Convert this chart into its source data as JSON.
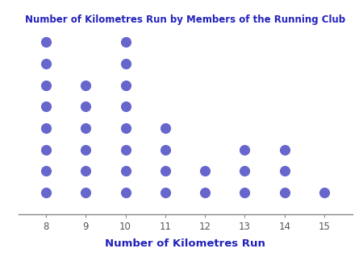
{
  "title": "Number of Kilometres Run by Members of the Running Club",
  "xlabel": "Number of Kilometres Run",
  "dot_counts": {
    "8": 8,
    "9": 6,
    "10": 8,
    "11": 4,
    "12": 2,
    "13": 3,
    "14": 3,
    "15": 1
  },
  "x_ticks": [
    8,
    9,
    10,
    11,
    12,
    13,
    14,
    15
  ],
  "x_min": 7.3,
  "x_max": 15.7,
  "dot_color": "#6666CC",
  "dot_size": 90,
  "title_color": "#2222BB",
  "xlabel_color": "#2222BB",
  "tick_color": "#555555",
  "spine_color": "#888888",
  "background_color": "#ffffff",
  "title_fontsize": 8.5,
  "xlabel_fontsize": 9.5,
  "tick_fontsize": 8.5
}
